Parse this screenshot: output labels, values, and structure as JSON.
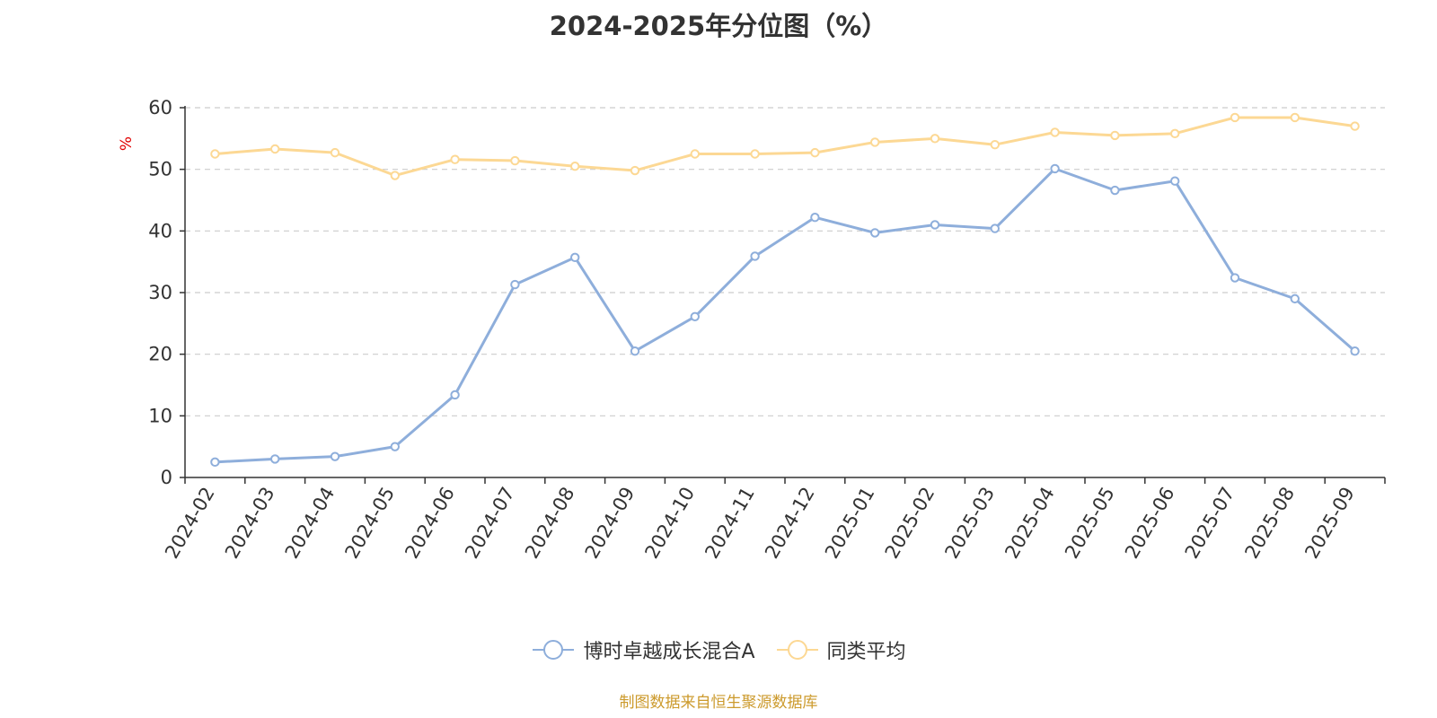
{
  "chart_data": {
    "type": "line",
    "title": "2024-2025年分位图（%）",
    "ylabel": "%",
    "xlabel": "",
    "ylim": [
      0,
      60
    ],
    "yticks": [
      0,
      10,
      20,
      30,
      40,
      50,
      60
    ],
    "grid": true,
    "legend_position": "bottom",
    "categories": [
      "2024-02",
      "2024-03",
      "2024-04",
      "2024-05",
      "2024-06",
      "2024-07",
      "2024-08",
      "2024-09",
      "2024-10",
      "2024-11",
      "2024-12",
      "2025-01",
      "2025-02",
      "2025-03",
      "2025-04",
      "2025-05",
      "2025-06",
      "2025-07",
      "2025-08",
      "2025-09"
    ],
    "series": [
      {
        "name": "博时卓越成长混合A",
        "color": "#8eaedb",
        "values": [
          2.5,
          3.0,
          3.4,
          5.0,
          13.4,
          31.3,
          35.7,
          20.5,
          26.1,
          35.9,
          42.2,
          39.7,
          41.0,
          40.4,
          50.1,
          46.6,
          48.1,
          32.4,
          29.0,
          20.5
        ]
      },
      {
        "name": "同类平均",
        "color": "#fcd894",
        "values": [
          52.5,
          53.3,
          52.7,
          49.0,
          51.6,
          51.4,
          50.5,
          49.8,
          52.5,
          52.5,
          52.7,
          54.4,
          55.0,
          54.0,
          56.0,
          55.5,
          55.8,
          58.4,
          58.4,
          57.0
        ]
      }
    ]
  },
  "source_note": "制图数据来自恒生聚源数据库"
}
